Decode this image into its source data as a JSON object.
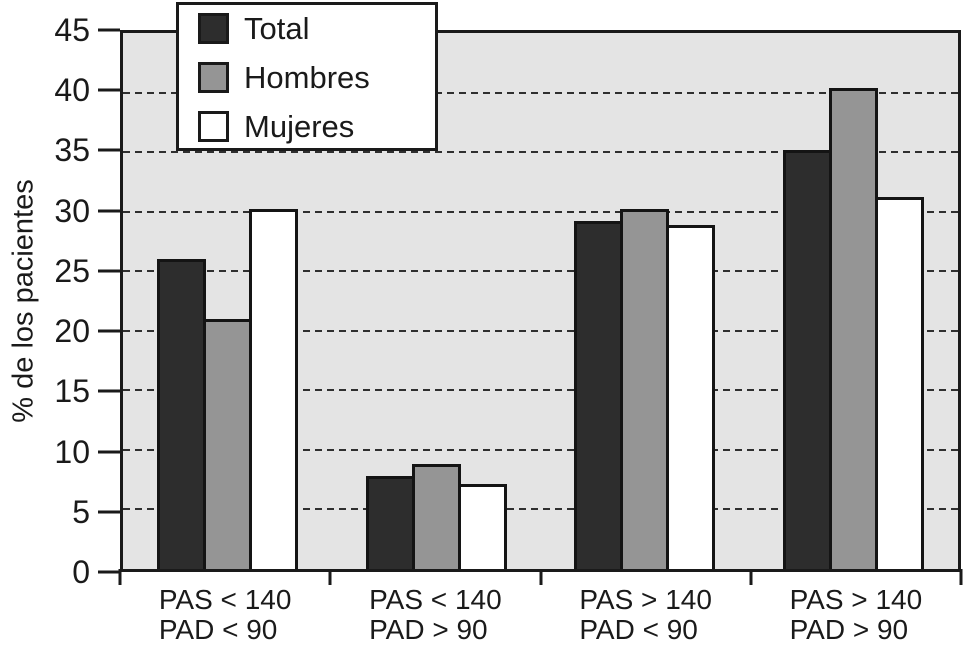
{
  "figure": {
    "background": "#ffffff",
    "text_color": "#1a1a1a"
  },
  "chart_data": {
    "type": "bar",
    "title": "",
    "xlabel": "",
    "ylabel": "% de los pacientes",
    "ylim": [
      0,
      45
    ],
    "yticks": [
      0,
      5,
      10,
      15,
      20,
      25,
      30,
      35,
      40,
      45
    ],
    "grid": "horizontal-dashed",
    "grid_color": "#2f2f2f",
    "plot_background": "#e4e4e4",
    "axis_color": "#1a1a1a",
    "legend_position": "top-left-overlay",
    "categories": [
      [
        "PAS < 140",
        "PAD < 90"
      ],
      [
        "PAS < 140",
        "PAD > 90"
      ],
      [
        "PAS > 140",
        "PAD < 90"
      ],
      [
        "PAS > 140",
        "PAD > 90"
      ]
    ],
    "series": [
      {
        "name": "Total",
        "color": "#2d2d2d",
        "values": [
          26.0,
          7.8,
          29.2,
          35.2
        ]
      },
      {
        "name": "Hombres",
        "color": "#959595",
        "values": [
          21.0,
          8.8,
          30.2,
          40.4
        ]
      },
      {
        "name": "Mujeres",
        "color": "#ffffff",
        "values": [
          30.2,
          7.1,
          28.9,
          31.2
        ]
      }
    ]
  }
}
